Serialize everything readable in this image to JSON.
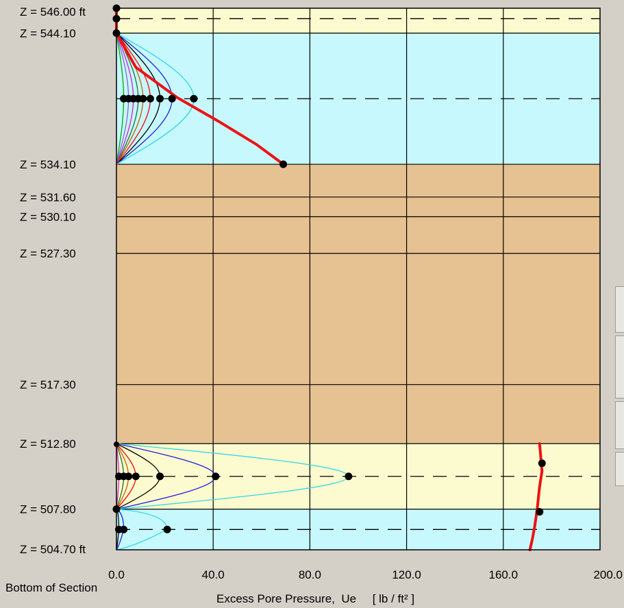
{
  "chart_data": {
    "type": "line",
    "title": "",
    "xlabel": "Excess Pore Pressure,  Ue     [ lb / ft² ]",
    "footer_label": "Bottom of Section",
    "xlim": [
      0,
      200
    ],
    "ylim": [
      504.7,
      546.0
    ],
    "x_ticks": [
      "0.0",
      "40.0",
      "80.0",
      "120.0",
      "160.0",
      "200.0"
    ],
    "x_tick_values": [
      0,
      40,
      80,
      120,
      160,
      200
    ],
    "z_labels": [
      {
        "z": 546.0,
        "text": "Z = 546.00 ft"
      },
      {
        "z": 544.1,
        "text": "Z = 544.10"
      },
      {
        "z": 534.1,
        "text": "Z = 534.10"
      },
      {
        "z": 531.6,
        "text": "Z = 531.60"
      },
      {
        "z": 530.1,
        "text": "Z = 530.10"
      },
      {
        "z": 527.3,
        "text": "Z = 527.30"
      },
      {
        "z": 517.3,
        "text": "Z = 517.30"
      },
      {
        "z": 512.8,
        "text": "Z = 512.80"
      },
      {
        "z": 507.8,
        "text": "Z = 507.80"
      },
      {
        "z": 504.7,
        "text": "Z = 504.70 ft"
      }
    ],
    "layers": [
      {
        "top": 546.0,
        "bottom": 544.1,
        "color": "#fcfacf"
      },
      {
        "top": 544.1,
        "bottom": 534.1,
        "color": "#c6f8fd"
      },
      {
        "top": 534.1,
        "bottom": 512.8,
        "color": "#e6c191"
      },
      {
        "top": 512.8,
        "bottom": 507.8,
        "color": "#fcfacf"
      },
      {
        "top": 507.8,
        "bottom": 504.7,
        "color": "#c6f8fd"
      }
    ],
    "boundaries": [
      544.1,
      534.1,
      531.6,
      530.1,
      527.3,
      517.3,
      512.8,
      507.8
    ],
    "dashed_levels": [
      545.2,
      539.1,
      510.3,
      506.25
    ],
    "isochrone_colors": [
      "#ff0000",
      "#00aa00",
      "#9060d0",
      "#d01ad0",
      "#207020",
      "#c06000",
      "#ff0000",
      "#000000",
      "#2020e0",
      "#30d8e8"
    ],
    "top_clay_midpoints": [
      3,
      5,
      7,
      9,
      11,
      14,
      18,
      23,
      32
    ],
    "bottom_clay_midpoints": [
      1,
      3,
      5,
      8,
      18,
      41,
      96
    ],
    "bottom_sand_midpoints": [
      1,
      3,
      21
    ],
    "red_profile": [
      {
        "x": 0,
        "z": 546.0
      },
      {
        "x": 0,
        "z": 545.2
      },
      {
        "x": 0,
        "z": 544.1
      },
      {
        "x": 8,
        "z": 541.5
      },
      {
        "x": 25,
        "z": 539.2
      },
      {
        "x": 42,
        "z": 537.4
      },
      {
        "x": 58,
        "z": 535.6
      },
      {
        "x": 69,
        "z": 534.1
      }
    ],
    "red_profile_lower": [
      {
        "x": 175,
        "z": 512.8
      },
      {
        "x": 176,
        "z": 510.7
      },
      {
        "x": 175,
        "z": 509.5
      },
      {
        "x": 174,
        "z": 507.8
      },
      {
        "x": 173,
        "z": 506.5
      },
      {
        "x": 172,
        "z": 505.5
      },
      {
        "x": 171,
        "z": 504.7
      }
    ]
  }
}
